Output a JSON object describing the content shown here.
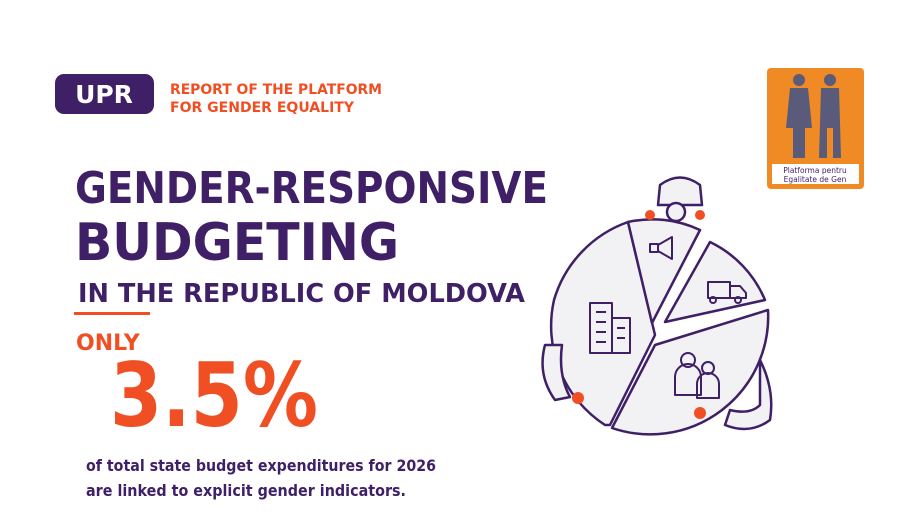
{
  "header": {
    "badge": "UPR",
    "report_lines": [
      "REPORT OF THE PLATFORM",
      "FOR GENDER EQUALITY"
    ]
  },
  "logo": {
    "caption_lines": [
      "Platforma pentru",
      "Egalitate de Gen"
    ]
  },
  "title": {
    "lines": [
      "GENDER-RESPONSIVE",
      "BUDGETING",
      "IN THE REPUBLIC OF MOLDOVA"
    ]
  },
  "highlight": {
    "lead": "ONLY",
    "figure": "3.5%"
  },
  "description": {
    "lines": [
      "of total state budget expenditures for 2026",
      "are linked to explicit gender indicators."
    ]
  }
}
